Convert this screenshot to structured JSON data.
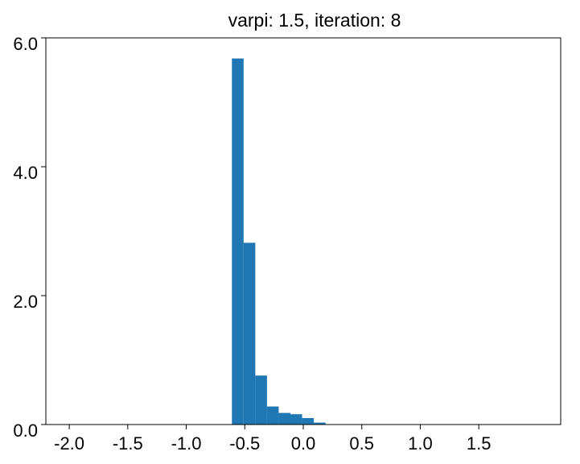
{
  "chart_data": {
    "type": "histogram",
    "title": "varpi: 1.5, iteration: 8",
    "bins": [
      -0.61,
      -0.51,
      -0.41,
      -0.31,
      -0.21,
      -0.11,
      -0.01,
      0.09,
      0.19
    ],
    "values": [
      5.68,
      2.82,
      0.76,
      0.28,
      0.18,
      0.16,
      0.1,
      0.03
    ],
    "color": "#1f77b4",
    "xlim": [
      -2.2,
      2.2
    ],
    "ylim": [
      0,
      6
    ],
    "xticks": [
      {
        "value": -2,
        "label": "-2.0"
      },
      {
        "value": -1.5,
        "label": "-1.5"
      },
      {
        "value": -1,
        "label": "-1.0"
      },
      {
        "value": -0.5,
        "label": "-0.5"
      },
      {
        "value": 0,
        "label": "0.0"
      },
      {
        "value": 0.5,
        "label": "0.5"
      },
      {
        "value": 1,
        "label": "1.0"
      },
      {
        "value": 1.5,
        "label": "1.5"
      }
    ],
    "yticks": [
      {
        "value": 0,
        "label": "0.0"
      },
      {
        "value": 2,
        "label": "2.0"
      },
      {
        "value": 4,
        "label": "4.0"
      },
      {
        "value": 6,
        "label": "6.0"
      }
    ],
    "grid": false
  }
}
